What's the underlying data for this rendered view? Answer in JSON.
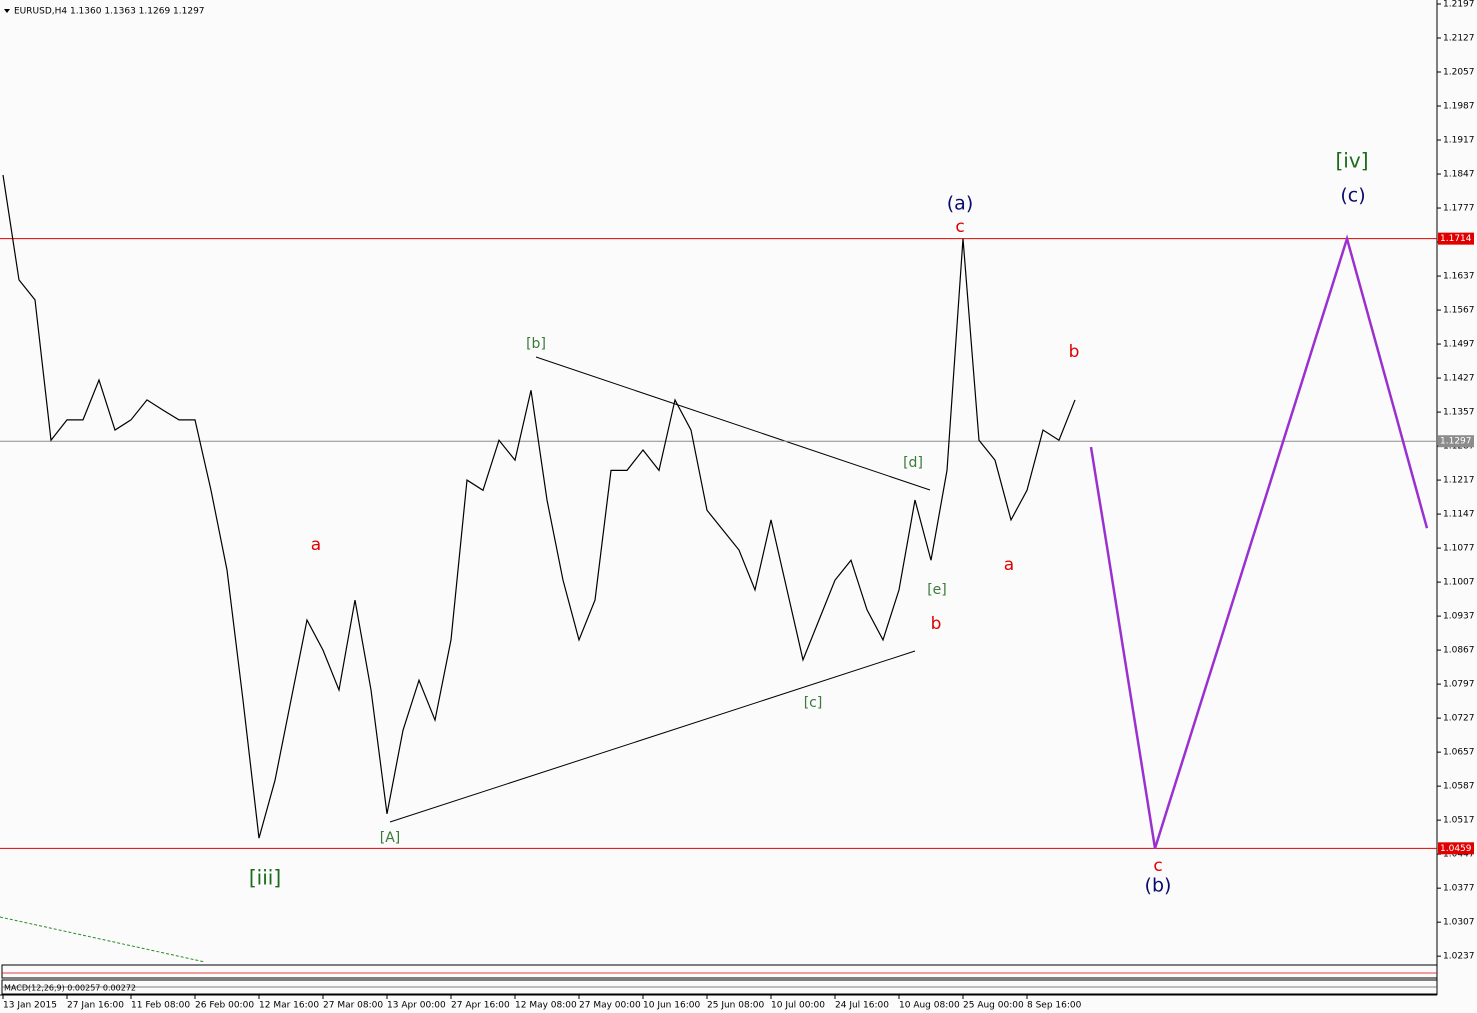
{
  "chart_data": {
    "type": "line",
    "title": "EURUSD,H4  1.1360 1.1363 1.1269 1.1297",
    "categories": [
      "13 Jan 2015",
      null,
      null,
      null,
      "27 Jan 16:00",
      null,
      null,
      null,
      "11 Feb 08:00",
      null,
      null,
      null,
      "26 Feb 00:00",
      null,
      null,
      null,
      "12 Mar 16:00",
      null,
      null,
      null,
      "27 Mar 08:00",
      null,
      null,
      null,
      "13 Apr 00:00",
      null,
      null,
      null,
      "27 Apr 16:00",
      null,
      null,
      null,
      "12 May 08:00",
      null,
      null,
      null,
      "27 May 00:00",
      null,
      null,
      null,
      "10 Jun 16:00",
      null,
      null,
      null,
      "25 Jun 08:00",
      null,
      null,
      null,
      "10 Jul 00:00",
      null,
      null,
      null,
      "24 Jul 16:00",
      null,
      null,
      null,
      "10 Aug 08:00",
      null,
      null,
      null,
      "25 Aug 00:00",
      null,
      null,
      null,
      "8 Sep 16:00",
      null,
      null,
      null,
      null,
      null,
      null,
      null,
      null,
      null,
      null,
      null,
      null,
      null,
      null,
      null,
      null,
      null,
      null,
      null,
      null,
      null,
      null,
      null,
      null,
      null
    ],
    "series": [
      {
        "color": "#000000",
        "values": [
          1.1845,
          1.1629,
          1.1588,
          1.1299,
          1.1341,
          1.1341,
          1.1423,
          1.132,
          1.1341,
          1.1382,
          1.1361,
          1.1341,
          1.1341,
          1.1196,
          1.1032,
          1.0764,
          1.048,
          1.0599,
          1.0764,
          1.0929,
          1.0867,
          1.0785,
          1.097,
          1.0785,
          1.053,
          1.0702,
          1.0805,
          1.0723,
          1.0888,
          1.1217,
          1.1196,
          1.1299,
          1.1258,
          1.1402,
          1.1176,
          1.1011,
          1.0888,
          1.097,
          1.1237,
          1.1237,
          1.1279,
          1.1237,
          1.1382,
          1.132,
          1.1155,
          1.1114,
          1.1073,
          1.0991,
          1.1135,
          1.0991,
          1.0847,
          1.0929,
          1.1011,
          1.1052,
          1.095,
          1.0888,
          1.0991,
          1.1176,
          1.1052,
          1.1237,
          1.1714,
          1.1299,
          1.1258,
          1.1135,
          1.1196,
          1.132,
          1.1299,
          1.1382,
          null,
          null,
          null,
          null,
          null,
          null,
          null,
          null,
          null,
          null,
          null,
          null,
          null,
          null,
          null,
          null,
          null,
          null,
          null,
          null,
          null,
          null
        ]
      },
      {
        "color": "#9b30d0",
        "values": [
          null,
          null,
          null,
          null,
          null,
          null,
          null,
          null,
          null,
          null,
          null,
          null,
          null,
          null,
          null,
          null,
          null,
          null,
          null,
          null,
          null,
          null,
          null,
          null,
          null,
          null,
          null,
          null,
          null,
          null,
          null,
          null,
          null,
          null,
          null,
          null,
          null,
          null,
          null,
          null,
          null,
          null,
          null,
          null,
          null,
          null,
          null,
          null,
          null,
          null,
          null,
          null,
          null,
          null,
          null,
          null,
          null,
          null,
          null,
          null,
          null,
          null,
          null,
          null,
          null,
          null,
          null,
          null,
          1.1285,
          1.108,
          1.0872,
          1.0666,
          1.0459,
          1.0564,
          1.0668,
          1.0773,
          1.0877,
          1.0982,
          1.1087,
          1.1191,
          1.1296,
          1.14,
          1.1505,
          1.1609,
          1.1714,
          1.1595,
          1.1476,
          1.1357,
          1.1237,
          1.1118
        ]
      }
    ],
    "ylim": [
      1.0225,
      1.2197
    ],
    "yticks": [
      1.2197,
      1.2127,
      1.2057,
      1.1987,
      1.1917,
      1.1847,
      1.1777,
      1.1707,
      1.1637,
      1.1567,
      1.1497,
      1.1427,
      1.1357,
      1.1287,
      1.1217,
      1.1147,
      1.1077,
      1.1007,
      1.0937,
      1.0867,
      1.0797,
      1.0727,
      1.0657,
      1.0587,
      1.0517,
      1.0447,
      1.0377,
      1.0307,
      1.0237
    ],
    "hlines": [
      {
        "value": 1.1714,
        "color": "#e00000"
      },
      {
        "value": 1.0459,
        "color": "#e00000"
      },
      {
        "value": 1.1297,
        "color": "#8c8c8c"
      }
    ],
    "annotations": [
      {
        "text": "[iii]",
        "color": "#1a6b1a"
      },
      {
        "text": "a",
        "color": "#e00000"
      },
      {
        "text": "[A]",
        "color": "#3a7a3a"
      },
      {
        "text": "[b]",
        "color": "#3a7a3a"
      },
      {
        "text": "[c]",
        "color": "#3a7a3a"
      },
      {
        "text": "[d]",
        "color": "#3a7a3a"
      },
      {
        "text": "[e]",
        "color": "#3a7a3a"
      },
      {
        "text": "b",
        "color": "#e00000"
      },
      {
        "text": "(a)",
        "color": "#0a0a6e"
      },
      {
        "text": "c",
        "color": "#e00000"
      },
      {
        "text": "a",
        "color": "#e00000"
      },
      {
        "text": "b",
        "color": "#e00000"
      },
      {
        "text": "c",
        "color": "#e00000"
      },
      {
        "text": "(b)",
        "color": "#0a0a6e"
      },
      {
        "text": "[iv]",
        "color": "#1a6b1a"
      },
      {
        "text": "(c)",
        "color": "#0a0a6e"
      }
    ],
    "indicator_label": "MACD(12,26,9) 0.00257 0.00272"
  }
}
